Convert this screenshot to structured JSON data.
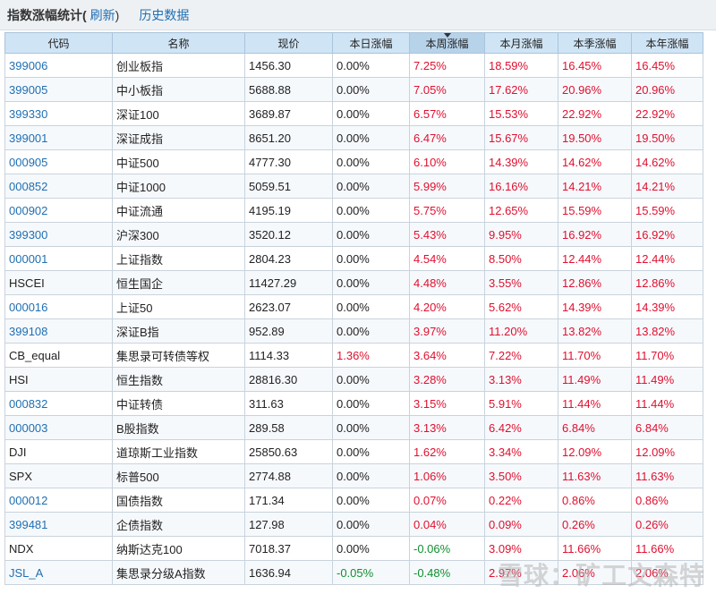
{
  "header": {
    "title": "指数涨幅统计(",
    "refresh_label": "刷新",
    "close_paren": ")",
    "history_label": "历史数据"
  },
  "columns": [
    "代码",
    "名称",
    "现价",
    "本日涨幅",
    "本周涨幅",
    "本月涨幅",
    "本季涨幅",
    "本年涨幅"
  ],
  "sorted_column": "本周涨幅",
  "rows": [
    {
      "code": "399006",
      "link": true,
      "name": "创业板指",
      "price": "1456.30",
      "day": "0.00%",
      "week": "7.25%",
      "month": "18.59%",
      "quarter": "16.45%",
      "year": "16.45%"
    },
    {
      "code": "399005",
      "link": true,
      "name": "中小板指",
      "price": "5688.88",
      "day": "0.00%",
      "week": "7.05%",
      "month": "17.62%",
      "quarter": "20.96%",
      "year": "20.96%"
    },
    {
      "code": "399330",
      "link": true,
      "name": "深证100",
      "price": "3689.87",
      "day": "0.00%",
      "week": "6.57%",
      "month": "15.53%",
      "quarter": "22.92%",
      "year": "22.92%"
    },
    {
      "code": "399001",
      "link": true,
      "name": "深证成指",
      "price": "8651.20",
      "day": "0.00%",
      "week": "6.47%",
      "month": "15.67%",
      "quarter": "19.50%",
      "year": "19.50%"
    },
    {
      "code": "000905",
      "link": true,
      "name": "中证500",
      "price": "4777.30",
      "day": "0.00%",
      "week": "6.10%",
      "month": "14.39%",
      "quarter": "14.62%",
      "year": "14.62%"
    },
    {
      "code": "000852",
      "link": true,
      "name": "中证1000",
      "price": "5059.51",
      "day": "0.00%",
      "week": "5.99%",
      "month": "16.16%",
      "quarter": "14.21%",
      "year": "14.21%"
    },
    {
      "code": "000902",
      "link": true,
      "name": "中证流通",
      "price": "4195.19",
      "day": "0.00%",
      "week": "5.75%",
      "month": "12.65%",
      "quarter": "15.59%",
      "year": "15.59%"
    },
    {
      "code": "399300",
      "link": true,
      "name": "沪深300",
      "price": "3520.12",
      "day": "0.00%",
      "week": "5.43%",
      "month": "9.95%",
      "quarter": "16.92%",
      "year": "16.92%"
    },
    {
      "code": "000001",
      "link": true,
      "name": "上证指数",
      "price": "2804.23",
      "day": "0.00%",
      "week": "4.54%",
      "month": "8.50%",
      "quarter": "12.44%",
      "year": "12.44%"
    },
    {
      "code": "HSCEI",
      "link": false,
      "name": "恒生国企",
      "price": "11427.29",
      "day": "0.00%",
      "week": "4.48%",
      "month": "3.55%",
      "quarter": "12.86%",
      "year": "12.86%"
    },
    {
      "code": "000016",
      "link": true,
      "name": "上证50",
      "price": "2623.07",
      "day": "0.00%",
      "week": "4.20%",
      "month": "5.62%",
      "quarter": "14.39%",
      "year": "14.39%"
    },
    {
      "code": "399108",
      "link": true,
      "name": "深证B指",
      "price": "952.89",
      "day": "0.00%",
      "week": "3.97%",
      "month": "11.20%",
      "quarter": "13.82%",
      "year": "13.82%"
    },
    {
      "code": "CB_equal",
      "link": false,
      "name": "集思录可转债等权",
      "price": "1114.33",
      "day": "1.36%",
      "week": "3.64%",
      "month": "7.22%",
      "quarter": "11.70%",
      "year": "11.70%"
    },
    {
      "code": "HSI",
      "link": false,
      "name": "恒生指数",
      "price": "28816.30",
      "day": "0.00%",
      "week": "3.28%",
      "month": "3.13%",
      "quarter": "11.49%",
      "year": "11.49%"
    },
    {
      "code": "000832",
      "link": true,
      "name": "中证转债",
      "price": "311.63",
      "day": "0.00%",
      "week": "3.15%",
      "month": "5.91%",
      "quarter": "11.44%",
      "year": "11.44%"
    },
    {
      "code": "000003",
      "link": true,
      "name": "B股指数",
      "price": "289.58",
      "day": "0.00%",
      "week": "3.13%",
      "month": "6.42%",
      "quarter": "6.84%",
      "year": "6.84%"
    },
    {
      "code": "DJI",
      "link": false,
      "name": "道琼斯工业指数",
      "price": "25850.63",
      "day": "0.00%",
      "week": "1.62%",
      "month": "3.34%",
      "quarter": "12.09%",
      "year": "12.09%"
    },
    {
      "code": "SPX",
      "link": false,
      "name": "标普500",
      "price": "2774.88",
      "day": "0.00%",
      "week": "1.06%",
      "month": "3.50%",
      "quarter": "11.63%",
      "year": "11.63%"
    },
    {
      "code": "000012",
      "link": true,
      "name": "国债指数",
      "price": "171.34",
      "day": "0.00%",
      "week": "0.07%",
      "month": "0.22%",
      "quarter": "0.86%",
      "year": "0.86%"
    },
    {
      "code": "399481",
      "link": true,
      "name": "企债指数",
      "price": "127.98",
      "day": "0.00%",
      "week": "0.04%",
      "month": "0.09%",
      "quarter": "0.26%",
      "year": "0.26%"
    },
    {
      "code": "NDX",
      "link": false,
      "name": "纳斯达克100",
      "price": "7018.37",
      "day": "0.00%",
      "week": "-0.06%",
      "month": "3.09%",
      "quarter": "11.66%",
      "year": "11.66%"
    },
    {
      "code": "JSL_A",
      "link": true,
      "name": "集思录分级A指数",
      "price": "1636.94",
      "day": "-0.05%",
      "week": "-0.48%",
      "month": "2.97%",
      "quarter": "2.06%",
      "year": "2.06%"
    }
  ],
  "colors": {
    "up": "#e0102f",
    "down": "#109030",
    "link": "#1f6fb2",
    "header_bg": "#cfe4f5"
  },
  "watermark": "雪球：矿工文森特"
}
